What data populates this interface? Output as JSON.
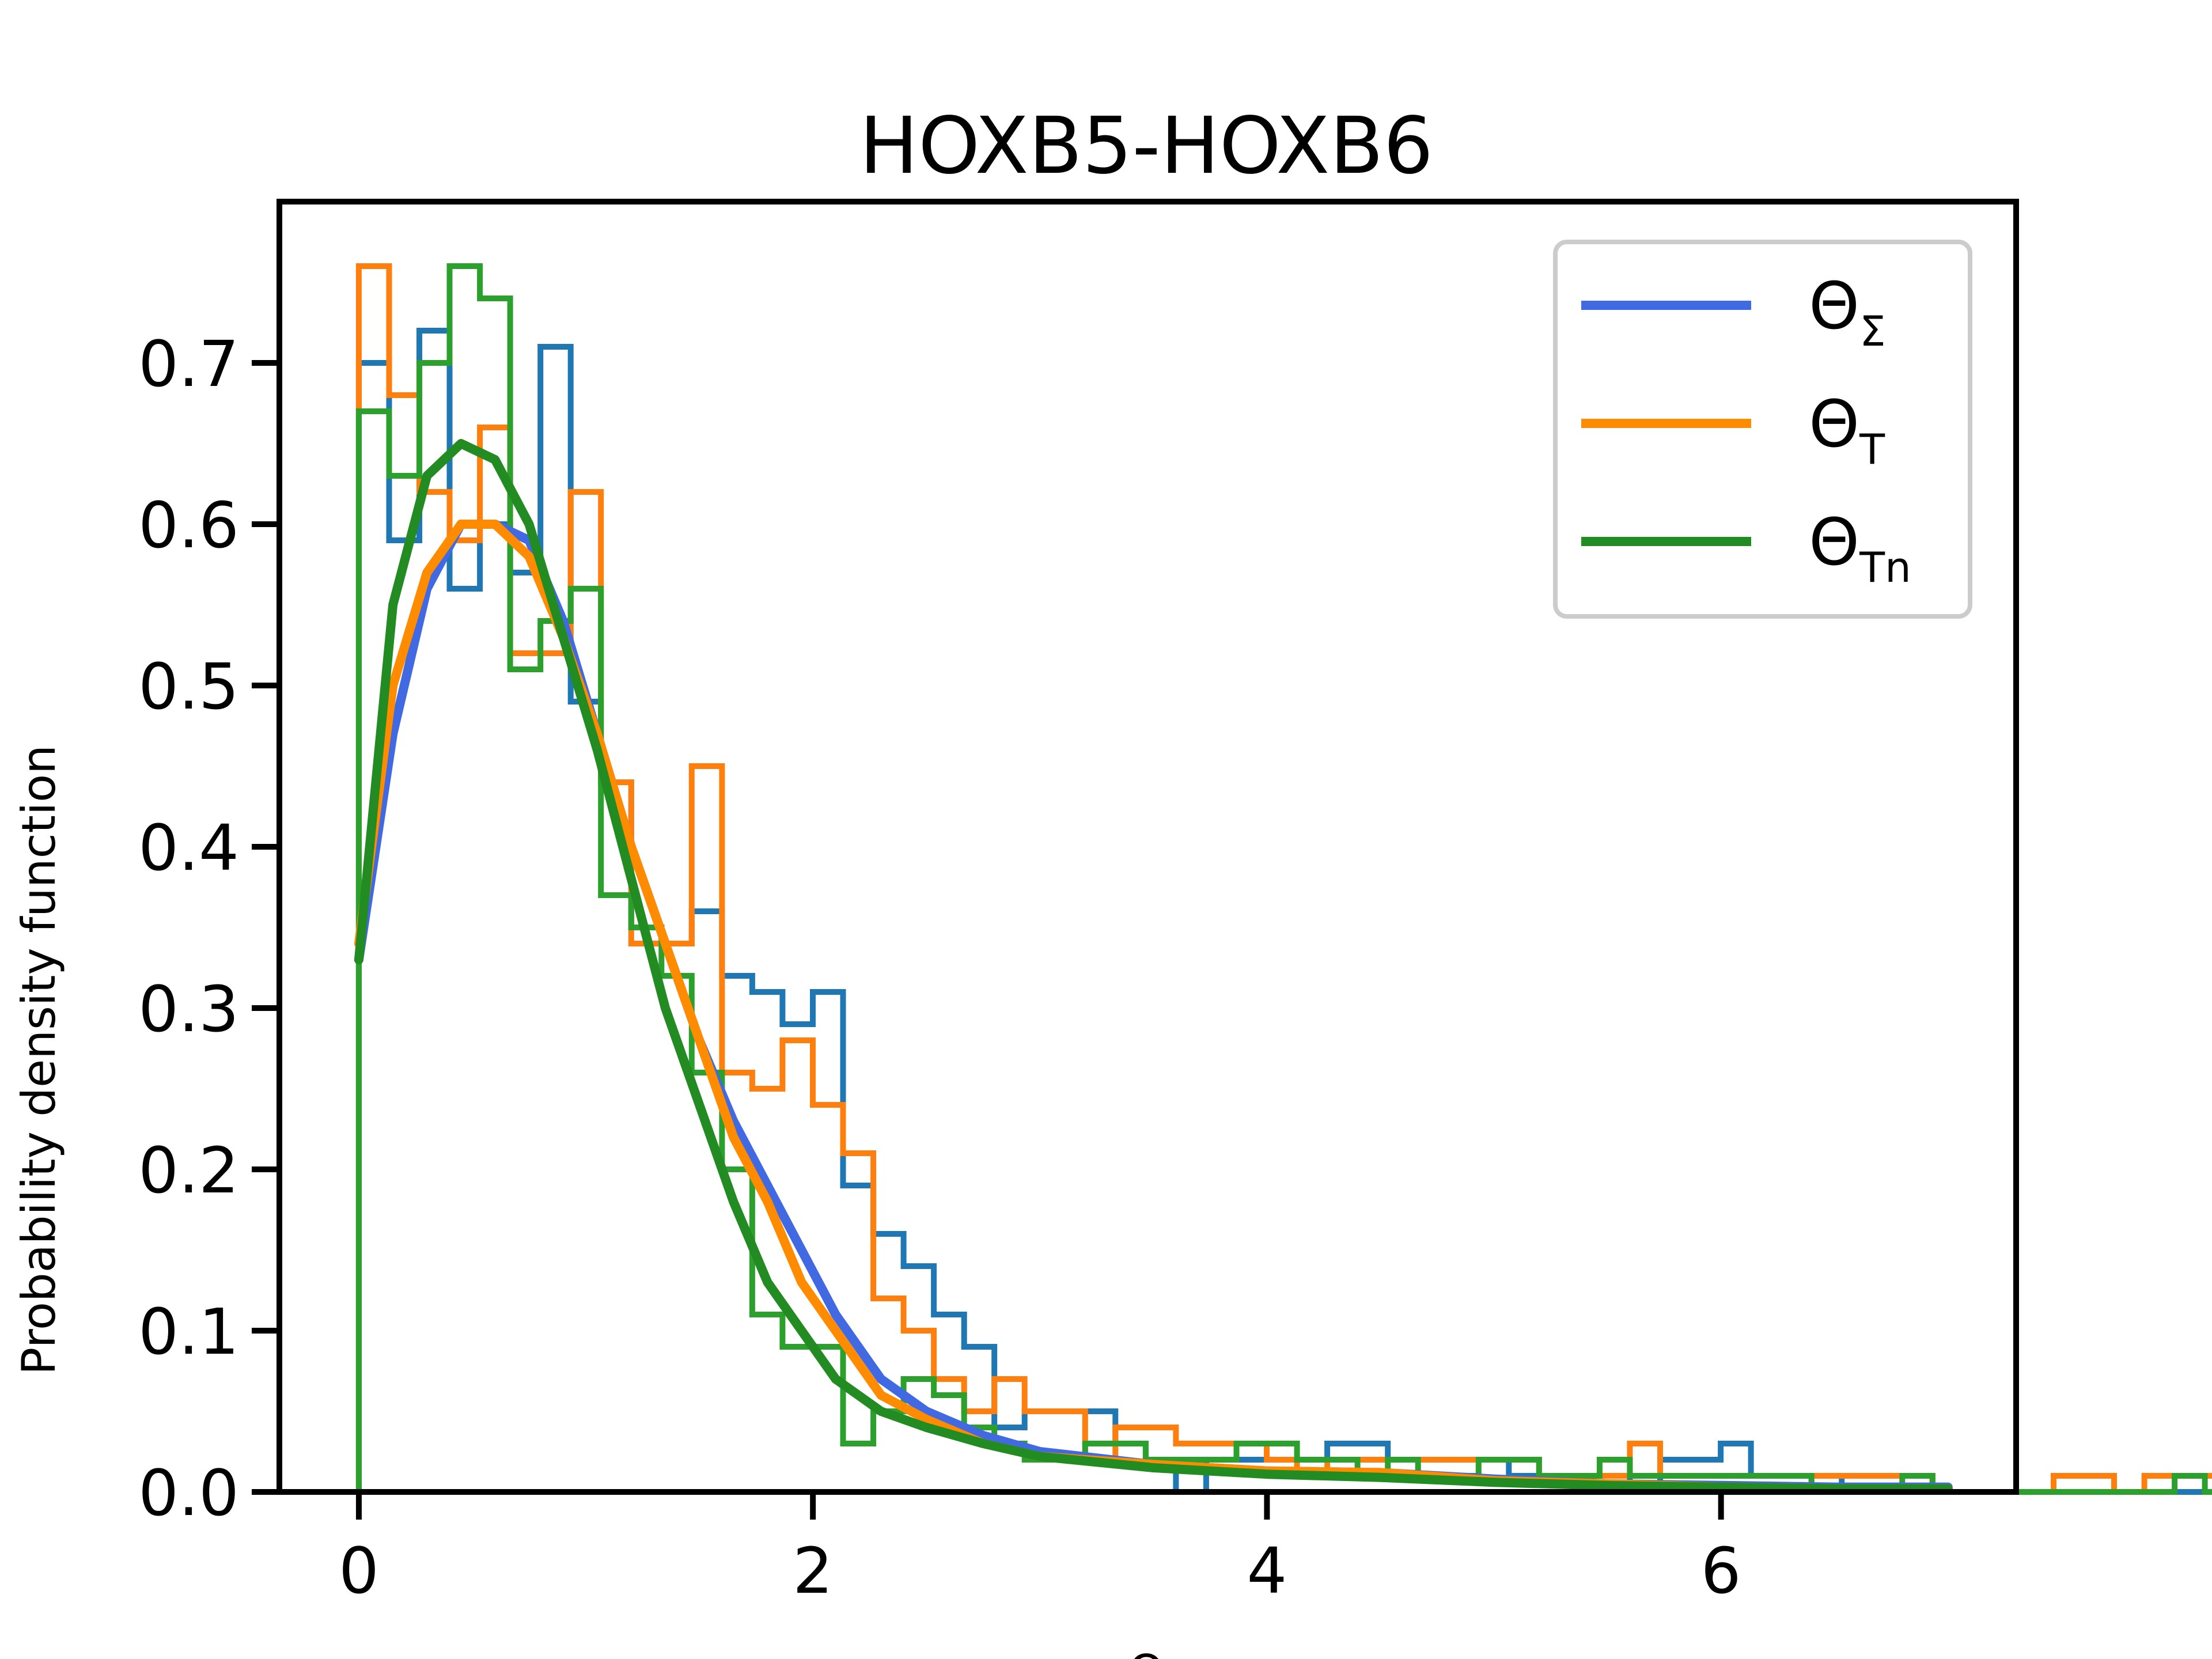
{
  "chart_data": {
    "type": "line",
    "title": "HOXB5-HOXB6",
    "xlabel": "Θ",
    "ylabel": "Probability density function",
    "xlim": [
      -0.35,
      7.3
    ],
    "ylim": [
      0.0,
      0.8
    ],
    "xticks": [
      0,
      2,
      4,
      6
    ],
    "yticks": [
      0.0,
      0.1,
      0.2,
      0.3,
      0.4,
      0.5,
      0.6,
      0.7
    ],
    "grid": false,
    "legend_position": "top-right",
    "series": [
      {
        "name": "Θ",
        "name_sub": "Σ",
        "line_color": "#4169e1",
        "hist_color": "#1f77b4",
        "bin_width": 0.1333,
        "hist_values": [
          0.7,
          0.59,
          0.72,
          0.56,
          0.6,
          0.57,
          0.71,
          0.49,
          0.44,
          0.35,
          0.34,
          0.36,
          0.32,
          0.31,
          0.29,
          0.31,
          0.19,
          0.16,
          0.14,
          0.11,
          0.09,
          0.04,
          0.05,
          0.05,
          0.05,
          0.03,
          0.02,
          0.0,
          0.02,
          0.02,
          0.02,
          0.02,
          0.03,
          0.03,
          0.02,
          0.02,
          0.02,
          0.02,
          0.01,
          0.01,
          0.01,
          0.01,
          0.0,
          0.02,
          0.02,
          0.03,
          0.01,
          0.01,
          0.0,
          0.01,
          0.01,
          0.01,
          0.0,
          0.0,
          0.0,
          0.0,
          0.0,
          0.0,
          0.0,
          0.0,
          0.0,
          0.0,
          0.0,
          0.0,
          0.0,
          0.0,
          0.0,
          0.0,
          0.0,
          0.0,
          0.0,
          0.0,
          0.0,
          0.0,
          0.0,
          0.0,
          0.0,
          0.0,
          0.0,
          0.0,
          0.0,
          0.01
        ],
        "x": [
          0.0,
          0.15,
          0.3,
          0.45,
          0.6,
          0.75,
          0.9,
          1.05,
          1.2,
          1.35,
          1.5,
          1.65,
          1.8,
          1.95,
          2.1,
          2.3,
          2.5,
          2.75,
          3.0,
          3.5,
          4.0,
          4.5,
          5.0,
          5.5,
          6.0,
          6.5,
          7.0
        ],
        "y": [
          0.33,
          0.47,
          0.56,
          0.6,
          0.6,
          0.59,
          0.54,
          0.47,
          0.4,
          0.34,
          0.28,
          0.23,
          0.19,
          0.15,
          0.11,
          0.07,
          0.05,
          0.035,
          0.025,
          0.017,
          0.013,
          0.012,
          0.008,
          0.005,
          0.004,
          0.003,
          0.003
        ]
      },
      {
        "name": "Θ",
        "name_sub": "T",
        "line_color": "#ff8c00",
        "hist_color": "#ff7f0e",
        "bin_width": 0.1333,
        "hist_values": [
          0.76,
          0.68,
          0.62,
          0.59,
          0.66,
          0.52,
          0.52,
          0.62,
          0.44,
          0.34,
          0.34,
          0.45,
          0.26,
          0.25,
          0.28,
          0.24,
          0.21,
          0.12,
          0.1,
          0.07,
          0.05,
          0.07,
          0.05,
          0.05,
          0.02,
          0.04,
          0.04,
          0.03,
          0.03,
          0.03,
          0.02,
          0.01,
          0.02,
          0.02,
          0.02,
          0.02,
          0.02,
          0.02,
          0.02,
          0.01,
          0.01,
          0.01,
          0.03,
          0.01,
          0.01,
          0.01,
          0.01,
          0.01,
          0.01,
          0.01,
          0.01,
          0.01,
          0.0,
          0.0,
          0.0,
          0.0,
          0.01,
          0.01,
          0.0,
          0.01,
          0.01,
          0.01,
          0.01,
          0.0,
          0.0,
          0.0,
          0.0,
          0.0,
          0.0,
          0.0,
          0.0,
          0.0,
          0.0,
          0.0,
          0.0,
          0.0,
          0.0,
          0.0,
          0.0,
          0.0,
          0.0,
          0.0
        ],
        "x": [
          0.0,
          0.15,
          0.3,
          0.45,
          0.6,
          0.75,
          0.9,
          1.05,
          1.2,
          1.35,
          1.5,
          1.65,
          1.8,
          1.95,
          2.1,
          2.3,
          2.5,
          2.75,
          3.0,
          3.5,
          4.0,
          4.5,
          5.0,
          5.5,
          6.0,
          6.5,
          7.0
        ],
        "y": [
          0.34,
          0.5,
          0.57,
          0.6,
          0.6,
          0.58,
          0.53,
          0.47,
          0.4,
          0.34,
          0.28,
          0.22,
          0.18,
          0.13,
          0.1,
          0.06,
          0.045,
          0.03,
          0.022,
          0.017,
          0.013,
          0.012,
          0.007,
          0.005,
          0.003,
          0.002,
          0.002
        ]
      },
      {
        "name": "Θ",
        "name_sub": "Tn",
        "line_color": "#228b22",
        "hist_color": "#2ca02c",
        "bin_width": 0.1333,
        "hist_values": [
          0.67,
          0.63,
          0.7,
          0.76,
          0.74,
          0.51,
          0.54,
          0.56,
          0.37,
          0.35,
          0.32,
          0.26,
          0.2,
          0.11,
          0.09,
          0.09,
          0.03,
          0.05,
          0.07,
          0.06,
          0.04,
          0.03,
          0.02,
          0.02,
          0.03,
          0.03,
          0.02,
          0.02,
          0.02,
          0.03,
          0.03,
          0.02,
          0.02,
          0.01,
          0.02,
          0.01,
          0.01,
          0.02,
          0.02,
          0.01,
          0.01,
          0.02,
          0.01,
          0.01,
          0.01,
          0.01,
          0.01,
          0.01,
          0.0,
          0.0,
          0.0,
          0.01,
          0.0,
          0.0,
          0.0,
          0.0,
          0.0,
          0.0,
          0.0,
          0.0,
          0.01,
          0.0,
          0.0,
          0.0,
          0.0,
          0.0,
          0.0,
          0.0,
          0.0,
          0.0,
          0.0,
          0.0,
          0.0,
          0.0,
          0.0,
          0.0,
          0.0,
          0.0,
          0.0,
          0.0,
          0.0,
          0.0
        ],
        "x": [
          0.0,
          0.15,
          0.3,
          0.45,
          0.6,
          0.75,
          0.9,
          1.05,
          1.2,
          1.35,
          1.5,
          1.65,
          1.8,
          1.95,
          2.1,
          2.3,
          2.5,
          2.75,
          3.0,
          3.5,
          4.0,
          4.5,
          5.0,
          5.5,
          6.0,
          6.5,
          7.0
        ],
        "y": [
          0.33,
          0.55,
          0.63,
          0.65,
          0.64,
          0.6,
          0.53,
          0.46,
          0.38,
          0.3,
          0.24,
          0.18,
          0.13,
          0.1,
          0.07,
          0.05,
          0.04,
          0.03,
          0.022,
          0.015,
          0.011,
          0.009,
          0.006,
          0.004,
          0.003,
          0.002,
          0.002
        ]
      }
    ]
  }
}
